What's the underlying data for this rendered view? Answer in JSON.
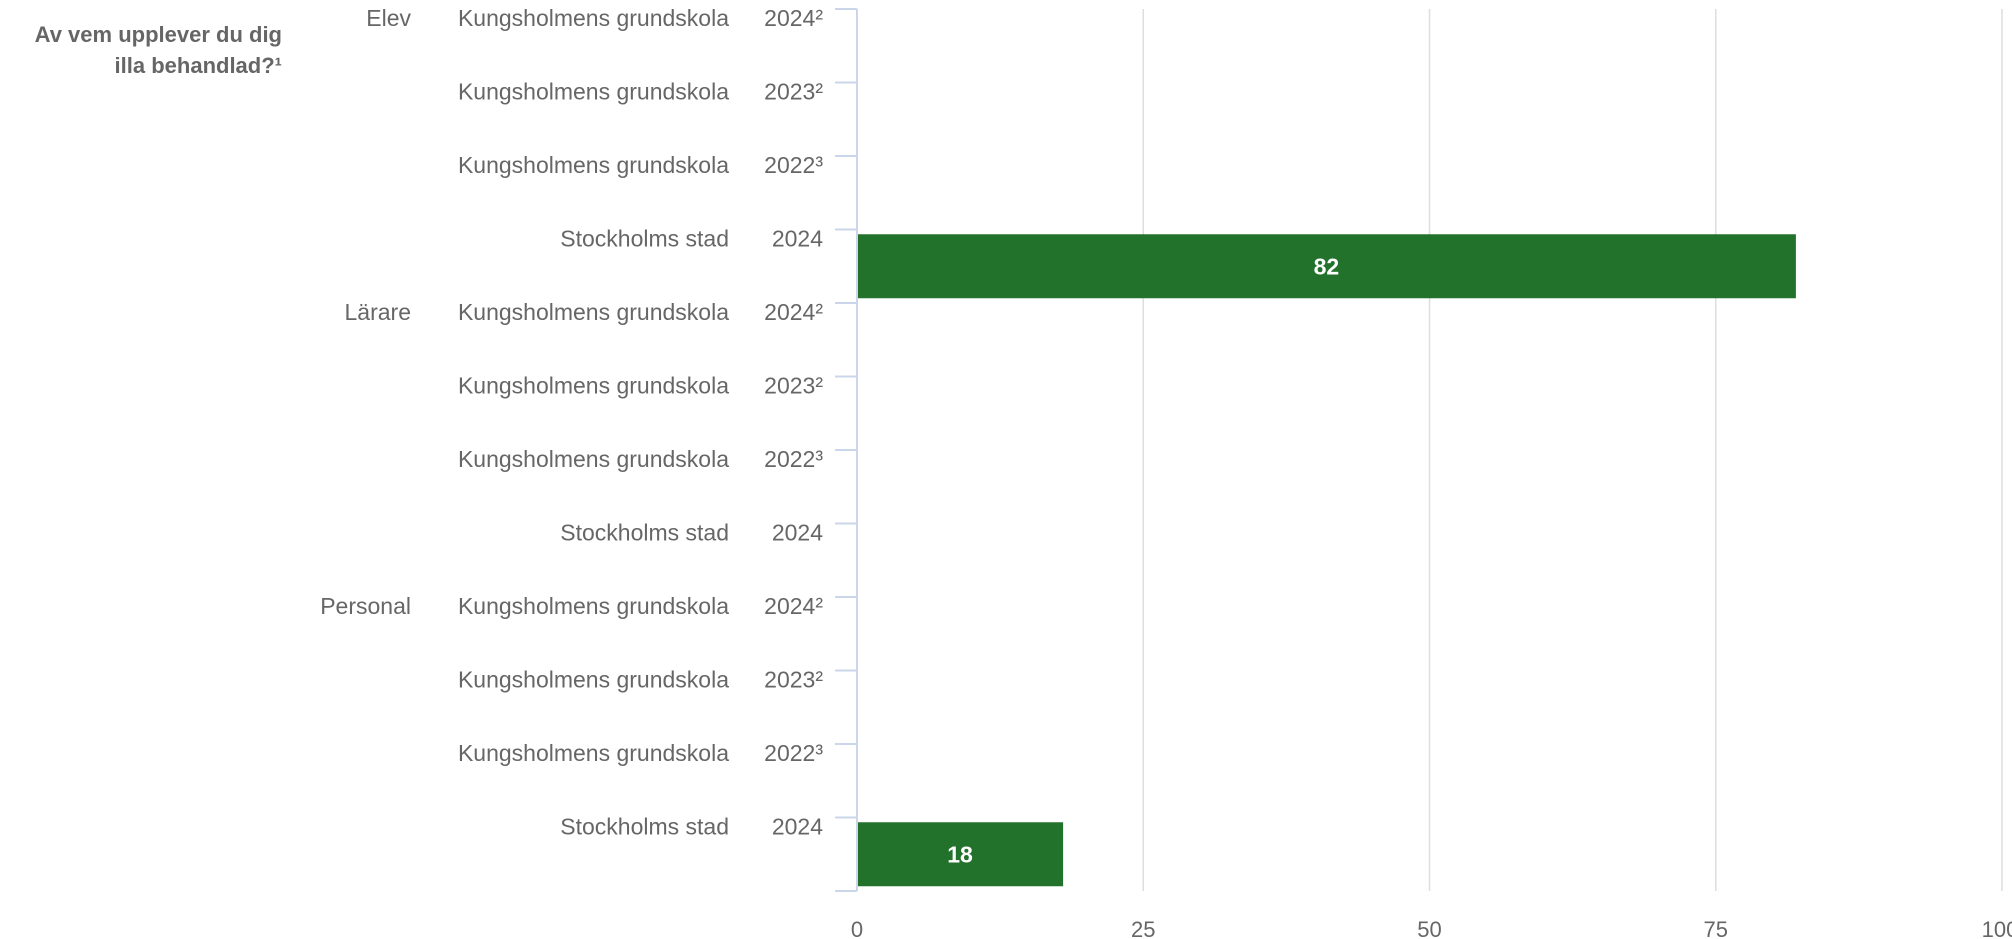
{
  "chart_data": {
    "type": "bar",
    "orientation": "horizontal",
    "question": [
      "Av vem upplever du dig",
      "illa behandlad?¹"
    ],
    "bar_color": "#23722c",
    "grid": true,
    "xlim": [
      0,
      100
    ],
    "x_ticks": [
      0,
      25,
      50,
      75,
      100
    ],
    "groups": [
      {
        "label": "Elev",
        "rows": [
          {
            "unit": "Kungsholmens grundskola",
            "year": "2024²",
            "value": null
          },
          {
            "unit": "Kungsholmens grundskola",
            "year": "2023²",
            "value": null
          },
          {
            "unit": "Kungsholmens grundskola",
            "year": "2022³",
            "value": null
          },
          {
            "unit": "Stockholms stad",
            "year": "2024",
            "value": 82
          }
        ]
      },
      {
        "label": "Lärare",
        "rows": [
          {
            "unit": "Kungsholmens grundskola",
            "year": "2024²",
            "value": null
          },
          {
            "unit": "Kungsholmens grundskola",
            "year": "2023²",
            "value": null
          },
          {
            "unit": "Kungsholmens grundskola",
            "year": "2022³",
            "value": null
          },
          {
            "unit": "Stockholms stad",
            "year": "2024",
            "value": null
          }
        ]
      },
      {
        "label": "Personal",
        "rows": [
          {
            "unit": "Kungsholmens grundskola",
            "year": "2024²",
            "value": null
          },
          {
            "unit": "Kungsholmens grundskola",
            "year": "2023²",
            "value": null
          },
          {
            "unit": "Kungsholmens grundskola",
            "year": "2022³",
            "value": null
          },
          {
            "unit": "Stockholms stad",
            "year": "2024",
            "value": 18
          }
        ]
      }
    ]
  }
}
